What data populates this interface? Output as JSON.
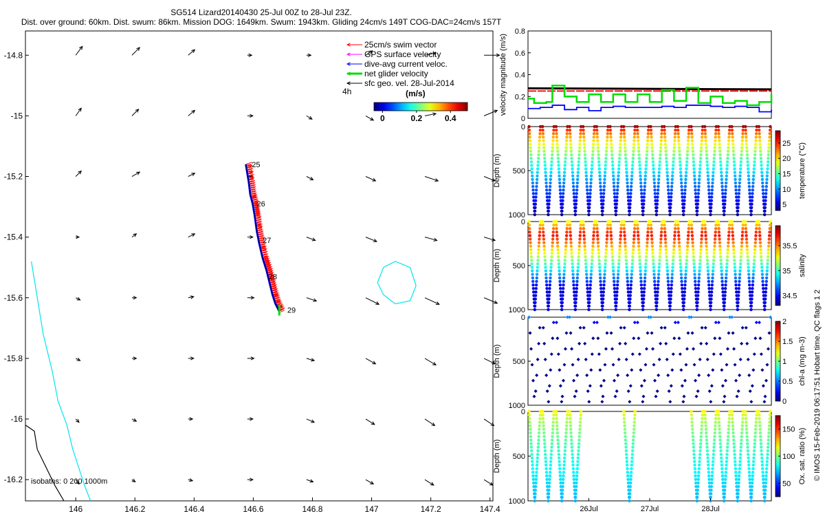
{
  "header": {
    "line1": "SG514 Lizard20140430 25-Jul 00Z to 28-Jul 23Z.",
    "line2": "Dist. over ground: 60km. Dist. swum: 86km. Mission DOG: 1649km. Swum: 1943km. Gliding 24cm/s 149T COG-DAC=24cm/s 157T"
  },
  "credit": "© IMOS 15-Feb-2019 06:17:51 Hobart time. QC flags 1  2",
  "colors": {
    "swim": "#ff0000",
    "gps": "#ff00ff",
    "dac": "#0000ff",
    "net": "#00dd00",
    "geo": "#000000",
    "isobath_200": "#00e5ee",
    "isobath_1000": "#000000"
  },
  "chart_data": [
    {
      "id": "map",
      "type": "scatter",
      "xlim": [
        145.83,
        147.41
      ],
      "ylim": [
        -16.27,
        -14.72
      ],
      "xticks": [
        "146",
        "146.2",
        "146.4",
        "146.6",
        "146.8",
        "147",
        "147.2",
        "147.4"
      ],
      "xtick_values": [
        146,
        146.2,
        146.4,
        146.6,
        146.8,
        147,
        147.2,
        147.4
      ],
      "yticks": [
        "-14.8",
        "-15",
        "-15.2",
        "-15.4",
        "-15.6",
        "-15.8",
        "-16",
        "-16.2"
      ],
      "ytick_values": [
        -14.8,
        -15,
        -15.2,
        -15.4,
        -15.6,
        -15.8,
        -16,
        -16.2
      ],
      "legend": [
        "25cm/s swim vector",
        "GPS surface velocity",
        "dive-avg current veloc.",
        "net glider velocity",
        "sfc geo. vel. 28-Jul-2014"
      ],
      "legend_placement": "top-right",
      "colorbar_label": "(m/s)",
      "colorbar_ticks": [
        "0",
        "0.2",
        "0.4"
      ],
      "colorbar_tick_values": [
        0,
        0.2,
        0.4
      ],
      "colorbar_range": [
        -0.05,
        0.5
      ],
      "scale_label": "4h",
      "isobath_label": "isobaths: 0   200   1000m",
      "track": {
        "lon": [
          146.575,
          146.585,
          146.59,
          146.598,
          146.605,
          146.612,
          146.62,
          146.632,
          146.645,
          146.655,
          146.665,
          146.675,
          146.688
        ],
        "lat": [
          -15.16,
          -15.22,
          -15.26,
          -15.29,
          -15.33,
          -15.38,
          -15.42,
          -15.47,
          -15.51,
          -15.55,
          -15.59,
          -15.62,
          -15.645
        ],
        "day_labels": [
          {
            "label": "25",
            "lon": 146.595,
            "lat": -15.16
          },
          {
            "label": "26",
            "lon": 146.612,
            "lat": -15.29
          },
          {
            "label": "27",
            "lon": 146.632,
            "lat": -15.41
          },
          {
            "label": "28",
            "lon": 146.652,
            "lat": -15.53
          },
          {
            "label": "29",
            "lon": 146.715,
            "lat": -15.64
          }
        ]
      },
      "geo_vectors": {
        "lons": [
          146.0,
          146.19,
          146.38,
          146.58,
          146.78,
          146.98,
          147.18,
          147.38
        ],
        "lats": [
          -14.8,
          -15.0,
          -15.2,
          -15.4,
          -15.6,
          -15.8,
          -16.0,
          -16.2
        ],
        "u": [
          [
            0.06,
            0.07,
            0.06,
            0.04,
            0.04,
            0.06,
            0.1,
            0.14
          ],
          [
            0.05,
            0.06,
            0.06,
            0.05,
            0.05,
            0.07,
            0.1,
            0.12
          ],
          [
            0.05,
            0.07,
            0.06,
            0.05,
            0.06,
            0.09,
            0.12,
            0.1
          ],
          [
            0.03,
            0.04,
            0.06,
            0.05,
            0.08,
            0.1,
            0.11,
            0.1
          ],
          [
            0.04,
            0.04,
            0.05,
            0.06,
            0.09,
            0.12,
            0.13,
            0.12
          ],
          [
            0.04,
            0.04,
            0.05,
            0.06,
            0.07,
            0.09,
            0.1,
            0.1
          ],
          [
            0.03,
            0.04,
            0.04,
            0.05,
            0.07,
            0.08,
            0.09,
            0.09
          ],
          [
            0.03,
            0.03,
            0.04,
            0.05,
            0.06,
            0.07,
            0.08,
            0.08
          ]
        ],
        "v": [
          [
            0.08,
            0.07,
            0.05,
            0.0,
            0.0,
            0.04,
            0.02,
            0.0
          ],
          [
            0.07,
            0.06,
            0.05,
            0.0,
            -0.03,
            -0.04,
            0.02,
            0.05
          ],
          [
            0.05,
            0.04,
            0.03,
            0.0,
            -0.03,
            -0.04,
            -0.04,
            -0.04
          ],
          [
            0.0,
            0.03,
            0.03,
            0.0,
            -0.03,
            -0.04,
            -0.03,
            -0.03
          ],
          [
            -0.02,
            0.0,
            0.01,
            0.0,
            -0.03,
            -0.06,
            -0.06,
            -0.05
          ],
          [
            -0.02,
            0.0,
            0.0,
            0.0,
            -0.02,
            -0.05,
            -0.06,
            -0.05
          ],
          [
            -0.03,
            -0.02,
            0.0,
            0.0,
            -0.03,
            -0.05,
            -0.06,
            -0.06
          ],
          [
            -0.04,
            -0.02,
            -0.01,
            0.0,
            -0.02,
            -0.04,
            -0.05,
            -0.05
          ]
        ]
      },
      "isobath_200": {
        "lon": [
          145.85,
          145.87,
          145.89,
          145.92,
          145.94,
          145.97,
          145.99,
          146.01,
          146.03,
          146.05
        ],
        "lat": [
          -15.48,
          -15.6,
          -15.72,
          -15.84,
          -15.94,
          -16.02,
          -16.1,
          -16.16,
          -16.22,
          -16.27
        ]
      },
      "isobath_200_eddy": {
        "lon": [
          147.04,
          147.08,
          147.13,
          147.15,
          147.13,
          147.08,
          147.04,
          147.02,
          147.04
        ],
        "lat": [
          -15.5,
          -15.48,
          -15.5,
          -15.56,
          -15.61,
          -15.62,
          -15.59,
          -15.55,
          -15.5
        ]
      },
      "isobath_1000": {
        "lon": [
          145.83,
          145.86,
          145.87,
          145.9,
          145.93,
          145.96
        ],
        "lat": [
          -16.02,
          -16.04,
          -16.1,
          -16.16,
          -16.22,
          -16.27
        ]
      }
    },
    {
      "id": "velocity",
      "type": "line",
      "xlim": [
        25.0,
        29.0
      ],
      "ylim": [
        0,
        0.8
      ],
      "yticks": [
        "0",
        "0.2",
        "0.4",
        "0.6",
        "0.8"
      ],
      "ytick_values": [
        0,
        0.2,
        0.4,
        0.6,
        0.8
      ],
      "ylabel": "velocity magnitude (m/s)",
      "series": [
        {
          "color": "#000000",
          "x": [
            25.0,
            29.0
          ],
          "y": [
            0.275,
            0.265
          ]
        },
        {
          "color": "#ff0000",
          "x": [
            25.0,
            27.0,
            29.0
          ],
          "y": [
            0.25,
            0.25,
            0.25
          ]
        },
        {
          "color": "#0000ff",
          "x": [
            25.0,
            25.2,
            25.4,
            25.6,
            25.8,
            26.0,
            26.2,
            26.4,
            26.6,
            26.8,
            27.0,
            27.2,
            27.4,
            27.6,
            27.8,
            28.0,
            28.2,
            28.4,
            28.6,
            28.8,
            29.0
          ],
          "y": [
            0.09,
            0.1,
            0.12,
            0.08,
            0.1,
            0.07,
            0.1,
            0.11,
            0.1,
            0.1,
            0.1,
            0.11,
            0.1,
            0.12,
            0.12,
            0.11,
            0.1,
            0.11,
            0.1,
            0.06,
            0.08
          ]
        },
        {
          "color": "#00dd00",
          "x": [
            25.0,
            25.1,
            25.3,
            25.4,
            25.6,
            25.8,
            26.0,
            26.2,
            26.4,
            26.6,
            26.8,
            27.0,
            27.2,
            27.4,
            27.6,
            27.8,
            28.0,
            28.2,
            28.4,
            28.6,
            28.8,
            29.0
          ],
          "y": [
            0.18,
            0.14,
            0.15,
            0.3,
            0.2,
            0.15,
            0.22,
            0.15,
            0.22,
            0.15,
            0.22,
            0.15,
            0.26,
            0.16,
            0.28,
            0.14,
            0.2,
            0.14,
            0.16,
            0.12,
            0.15,
            0.22
          ]
        }
      ]
    },
    {
      "id": "temperature",
      "type": "scatter",
      "xlim": [
        25.0,
        29.0
      ],
      "ylim": [
        1000,
        0
      ],
      "yticks": [
        "0",
        "500",
        "1000"
      ],
      "ytick_values": [
        0,
        500,
        1000
      ],
      "ylabel": "Depth (m)",
      "colorbar_label": "temperature (°C)",
      "colorbar_ticks": [
        "5",
        "10",
        "15",
        "20",
        "25"
      ],
      "colorbar_tick_values": [
        5,
        10,
        15,
        20,
        25
      ],
      "colorbar_range": [
        3,
        29
      ],
      "profiles": {
        "n_dives": 18,
        "max_depth": 1000,
        "surface_value": 28,
        "deep_value": 4
      },
      "markers": "stars"
    },
    {
      "id": "salinity",
      "type": "scatter",
      "xlim": [
        25.0,
        29.0
      ],
      "ylim": [
        1000,
        0
      ],
      "yticks": [
        "0",
        "500",
        "1000"
      ],
      "ytick_values": [
        0,
        500,
        1000
      ],
      "ylabel": "Depth (m)",
      "colorbar_label": "salinity",
      "colorbar_ticks": [
        "34.5",
        "35",
        "35.5"
      ],
      "colorbar_tick_values": [
        34.5,
        35,
        35.5
      ],
      "colorbar_range": [
        34.3,
        35.9
      ],
      "profiles": {
        "n_dives": 18,
        "max_depth": 1000,
        "surface_value": 35.3,
        "mid_value": 35.7,
        "deep_value": 34.45
      },
      "markers": "stars"
    },
    {
      "id": "chla",
      "type": "scatter",
      "xlim": [
        25.0,
        29.0
      ],
      "ylim": [
        1000,
        0
      ],
      "yticks": [
        "0",
        "500",
        "1000"
      ],
      "ytick_values": [
        0,
        500,
        1000
      ],
      "ylabel": "Depth (m)",
      "colorbar_label": "chl-a (mg m-3)",
      "colorbar_ticks": [
        "0",
        "0.5",
        "1",
        "1.5",
        "2"
      ],
      "colorbar_tick_values": [
        0,
        0.5,
        1,
        1.5,
        2
      ],
      "colorbar_range": [
        0,
        2
      ],
      "profiles": {
        "n_dives": 18,
        "max_depth": 1000,
        "surface_value": 0.5,
        "deep_value": 0.02
      },
      "markers": "diamonds"
    },
    {
      "id": "oxygen",
      "type": "scatter",
      "xlim": [
        25.0,
        29.0
      ],
      "ylim": [
        1000,
        0
      ],
      "yticks": [
        "0",
        "500",
        "1000"
      ],
      "ytick_values": [
        0,
        500,
        1000
      ],
      "ylabel": "Depth (m)",
      "xticks": [
        "26Jul",
        "27Jul",
        "28Jul"
      ],
      "xtick_values": [
        26,
        27,
        28
      ],
      "colorbar_label": "Ox. sat. ratio (%)",
      "colorbar_ticks": [
        "50",
        "100",
        "150"
      ],
      "colorbar_tick_values": [
        50,
        100,
        150
      ],
      "colorbar_range": [
        25,
        175
      ],
      "profiles": {
        "n_dives": 18,
        "max_depth": 1000,
        "surface_value": 120,
        "deep_value": 70,
        "gap_dives": [
          4,
          5,
          6,
          8,
          9,
          10,
          11
        ]
      },
      "markers": "stars"
    }
  ]
}
